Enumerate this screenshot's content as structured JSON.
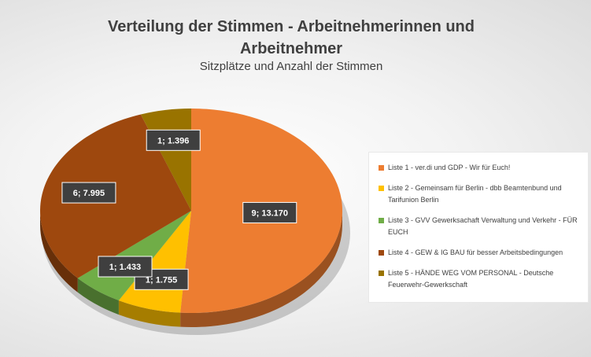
{
  "chart_data": {
    "type": "pie",
    "title": "Verteilung der Stimmen - Arbeitnehmerinnen und Arbeitnehmer",
    "subtitle": "Sitzplätze und Anzahl der Stimmen",
    "categories": [
      "Liste 1 - ver.di und GDP - Wir für Euch!",
      "Liste 2 - Gemeinsam für Berlin - dbb Beamtenbund und Tarifunion Berlin",
      "Liste 3 - GVV  Gewerksachaft Verwaltung und Verkehr - FÜR EUCH",
      "Liste 4 - GEW & IG BAU für besser Arbeitsbedingungen",
      "Liste 5 - HÄNDE WEG VOM PERSONAL - Deutsche Feuerwehr-Gewerkschaft"
    ],
    "seats": [
      9,
      1,
      1,
      6,
      1
    ],
    "votes": [
      13170,
      1755,
      1433,
      7995,
      1396
    ],
    "data_labels": [
      "9; 13.170",
      "1; 1.755",
      "1; 1.433",
      "6; 7.995",
      "1; 1.396"
    ],
    "colors": [
      "#ED7D31",
      "#FFC000",
      "#70AD47",
      "#9E480E",
      "#997300"
    ],
    "legend_position": "right"
  }
}
